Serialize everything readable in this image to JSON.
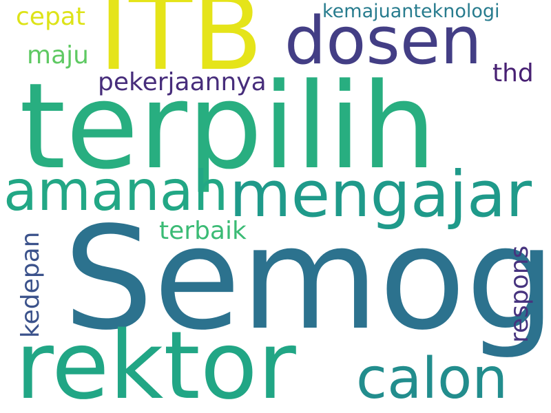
{
  "words": [
    {
      "key": "semoga",
      "text": "Semoga",
      "color": "#2c728e"
    },
    {
      "key": "terpilih",
      "text": "terpilih",
      "color": "#28ae80"
    },
    {
      "key": "rektor",
      "text": "rektor",
      "color": "#21a685"
    },
    {
      "key": "itb",
      "text": "ITB",
      "color": "#e5e419"
    },
    {
      "key": "dosen",
      "text": "dosen",
      "color": "#433e85"
    },
    {
      "key": "mengajar",
      "text": "mengajar",
      "color": "#1f9a8a"
    },
    {
      "key": "amanah",
      "text": "amanah",
      "color": "#22a785"
    },
    {
      "key": "calon",
      "text": "calon",
      "color": "#228d8d"
    },
    {
      "key": "pekerjaannya",
      "text": "pekerjaannya",
      "color": "#472d7b"
    },
    {
      "key": "terbaik",
      "text": "terbaik",
      "color": "#3bbb75"
    },
    {
      "key": "cepat",
      "text": "cepat",
      "color": "#dde318"
    },
    {
      "key": "maju",
      "text": "maju",
      "color": "#5ec962"
    },
    {
      "key": "thd",
      "text": "thd",
      "color": "#482173"
    },
    {
      "key": "kemajuanteknologi",
      "text": "kemajuanteknologi",
      "color": "#287c8e"
    },
    {
      "key": "kedepan",
      "text": "kedepan",
      "color": "#3b528b"
    },
    {
      "key": "respons",
      "text": "respons",
      "color": "#46337e"
    }
  ]
}
